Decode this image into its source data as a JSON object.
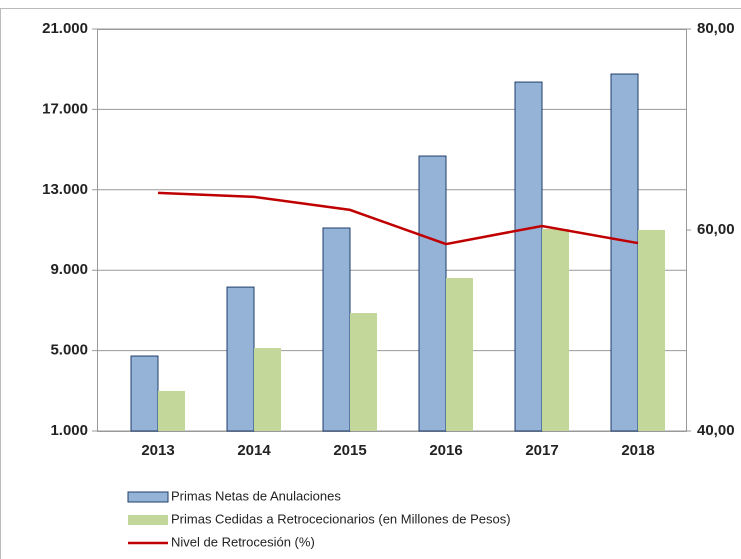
{
  "chart_data": {
    "type": "bar",
    "categories": [
      "2013",
      "2014",
      "2015",
      "2016",
      "2017",
      "2018"
    ],
    "series": [
      {
        "name": "Primas Netas de Anulaciones",
        "color": "#95b3d7",
        "values": [
          4730,
          8160,
          11100,
          14680,
          18360,
          18760
        ]
      },
      {
        "name": "Primas Cedidas a Retrocecionarios (en Millones de Pesos)",
        "color": "#c4d79b",
        "values": [
          2990,
          5130,
          6870,
          8610,
          11050,
          11000
        ]
      },
      {
        "name": "Nivel de Retrocesión (%)",
        "color": "#c00000",
        "type": "line",
        "axis": "y2",
        "values": [
          63.7,
          63.3,
          62.0,
          58.6,
          60.4,
          58.7
        ]
      }
    ],
    "ylim": [
      1000,
      21000
    ],
    "yticks": [
      {
        "value": 1000,
        "label": "1.000"
      },
      {
        "value": 5000,
        "label": "5.000"
      },
      {
        "value": 9000,
        "label": "9.000"
      },
      {
        "value": 13000,
        "label": "13.000"
      },
      {
        "value": 17000,
        "label": "17.000"
      },
      {
        "value": 21000,
        "label": "21.000"
      }
    ],
    "y2lim": [
      40,
      80
    ],
    "y2ticks": [
      {
        "value": 40,
        "label": "40,00"
      },
      {
        "value": 60,
        "label": "60,00"
      },
      {
        "value": 80,
        "label": "80,00"
      }
    ],
    "grid": true,
    "legend": "bottom"
  }
}
